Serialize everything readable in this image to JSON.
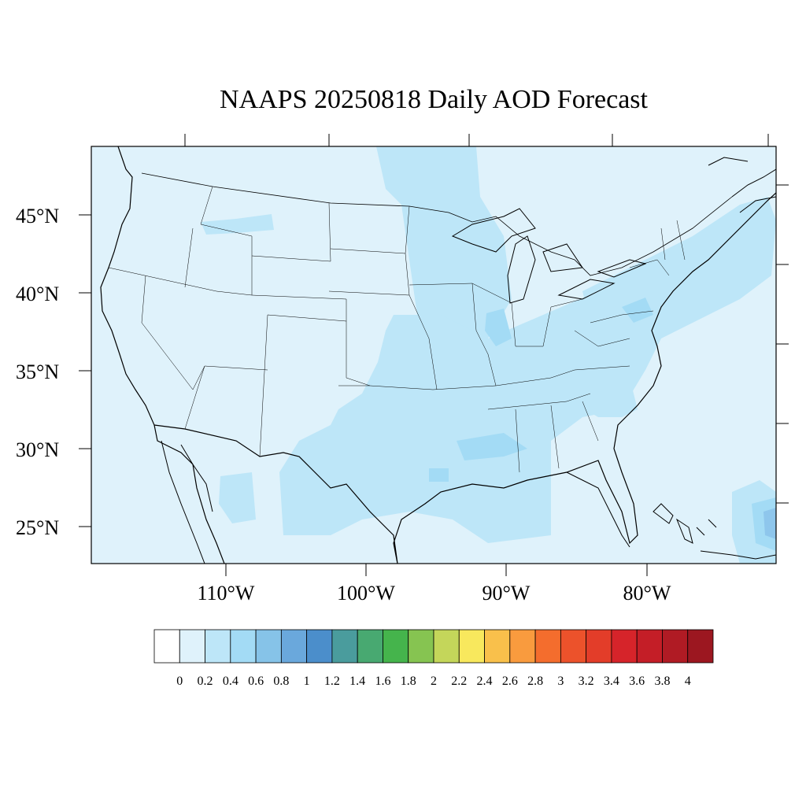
{
  "title": "NAAPS 20250818 Daily AOD Forecast",
  "colors": {
    "background_aod": "#dff2fb",
    "aod_02_04": "#bde6f8",
    "aod_04_06": "#a3dbf5",
    "aod_06_08": "#8ec6ec",
    "frame": "#000000"
  },
  "lat_labels": [
    "45°N",
    "40°N",
    "35°N",
    "30°N",
    "25°N"
  ],
  "lon_labels": [
    "110°W",
    "100°W",
    "90°W",
    "80°W"
  ],
  "colorbar": {
    "colors": [
      "#ffffff",
      "#dff2fb",
      "#bde6f8",
      "#a3dbf5",
      "#86c3e8",
      "#6aa8dc",
      "#4b8ecb",
      "#4a9c9d",
      "#48a971",
      "#45b44c",
      "#86c451",
      "#c4d65a",
      "#f8e85d",
      "#f9c04b",
      "#f99b3e",
      "#f46d2d",
      "#ec522b",
      "#e33d29",
      "#d6242a",
      "#c41e27",
      "#b01b24",
      "#9c1720"
    ],
    "labels": [
      "0",
      "0.2",
      "0.4",
      "0.6",
      "0.8",
      "1",
      "1.2",
      "1.4",
      "1.6",
      "1.8",
      "2",
      "2.2",
      "2.4",
      "2.6",
      "2.8",
      "3",
      "3.2",
      "3.4",
      "3.6",
      "3.8",
      "4"
    ]
  }
}
